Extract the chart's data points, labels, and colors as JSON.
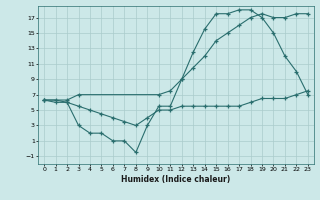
{
  "xlabel": "Humidex (Indice chaleur)",
  "bg_color": "#cce8e8",
  "line_color": "#2a6e6e",
  "grid_color": "#aacccc",
  "xlim": [
    -0.5,
    23.5
  ],
  "ylim": [
    -2,
    18.5
  ],
  "xticks": [
    0,
    1,
    2,
    3,
    4,
    5,
    6,
    7,
    8,
    9,
    10,
    11,
    12,
    13,
    14,
    15,
    16,
    17,
    18,
    19,
    20,
    21,
    22,
    23
  ],
  "yticks": [
    -1,
    1,
    3,
    5,
    7,
    9,
    11,
    13,
    15,
    17
  ],
  "line1_x": [
    0,
    1,
    2,
    3,
    4,
    5,
    6,
    7,
    8,
    9,
    10,
    11,
    12,
    13,
    14,
    15,
    16,
    17,
    18,
    19,
    20,
    21,
    22,
    23
  ],
  "line1_y": [
    6.3,
    6.3,
    6,
    3,
    2,
    2,
    1,
    1,
    -0.5,
    3,
    5.5,
    5.5,
    9,
    12.5,
    15.5,
    17.5,
    17.5,
    18,
    18,
    17,
    15,
    12,
    10,
    7
  ],
  "line2_x": [
    0,
    2,
    3,
    10,
    11,
    12,
    13,
    14,
    15,
    16,
    17,
    18,
    19,
    20,
    21,
    22,
    23
  ],
  "line2_y": [
    6.3,
    6.3,
    7,
    7,
    7.5,
    9,
    10.5,
    12,
    14,
    15,
    16,
    17,
    17.5,
    17,
    17,
    17.5,
    17.5
  ],
  "line3_x": [
    0,
    1,
    2,
    3,
    4,
    5,
    6,
    7,
    8,
    9,
    10,
    11,
    12,
    13,
    14,
    15,
    16,
    17,
    18,
    19,
    20,
    21,
    22,
    23
  ],
  "line3_y": [
    6.3,
    6,
    6,
    5.5,
    5,
    4.5,
    4,
    3.5,
    3,
    4,
    5,
    5,
    5.5,
    5.5,
    5.5,
    5.5,
    5.5,
    5.5,
    6,
    6.5,
    6.5,
    6.5,
    7,
    7.5
  ]
}
